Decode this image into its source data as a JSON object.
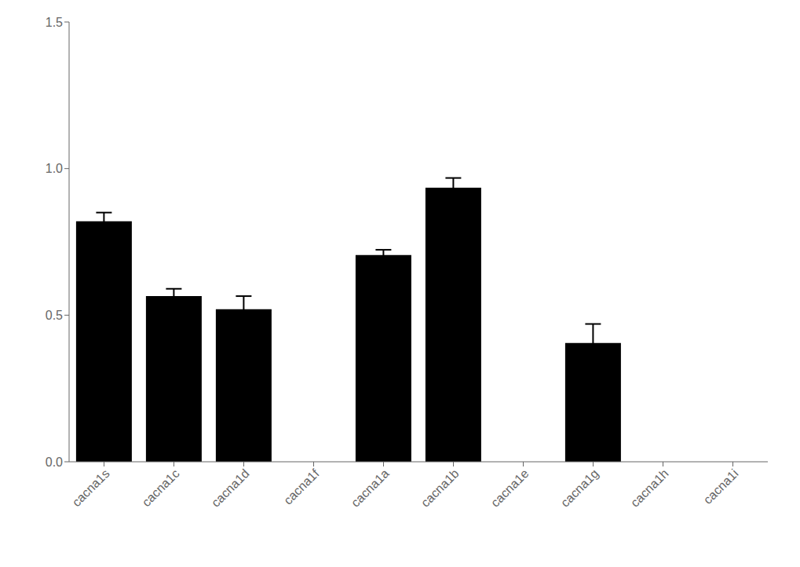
{
  "chart_data": {
    "type": "bar",
    "categories": [
      "cacna1s",
      "cacna1c",
      "cacna1d",
      "cacna1f",
      "cacna1a",
      "cacna1b",
      "cacna1e",
      "cacna1g",
      "cacna1h",
      "cacna1i"
    ],
    "values": [
      0.82,
      0.565,
      0.52,
      0.0,
      0.705,
      0.935,
      0.0,
      0.405,
      0.0,
      0.0
    ],
    "errors": [
      0.03,
      0.025,
      0.045,
      0.0,
      0.018,
      0.033,
      0.0,
      0.065,
      0.0,
      0.0
    ],
    "ylim": [
      0.0,
      1.5
    ],
    "yticks": [
      {
        "value": 0.0,
        "label": "0.0"
      },
      0.5,
      {
        "value": 1.0,
        "label": "1.0"
      },
      1.5
    ],
    "grid": false
  }
}
